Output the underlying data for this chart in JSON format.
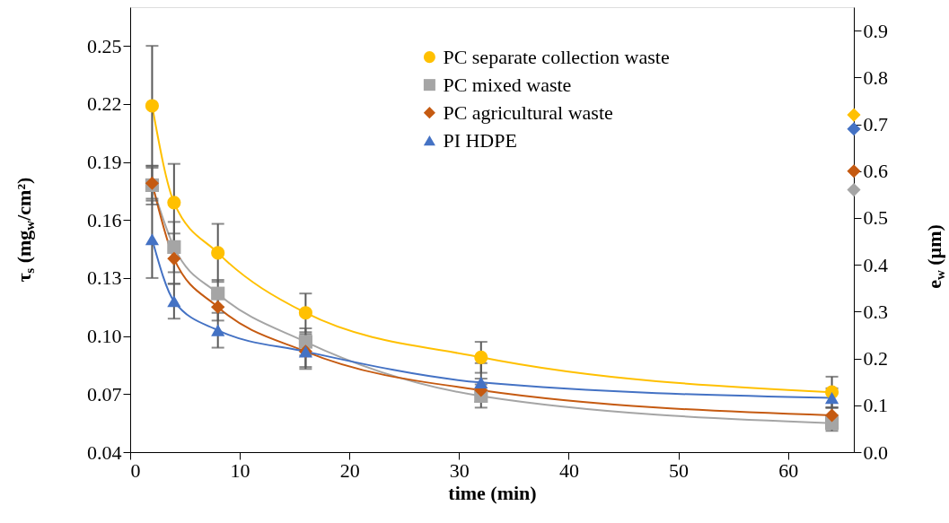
{
  "chart_data": {
    "type": "line",
    "xlabel": "time (min)",
    "ylabel": "τ$_{s}$ (mg$_{w}$/cm²)",
    "y2label": "e$_{w}$ (µm)",
    "xlim": [
      0,
      66
    ],
    "xticks": [
      0,
      10,
      20,
      30,
      40,
      50,
      60
    ],
    "ylim": [
      0.04,
      0.27
    ],
    "yticks": [
      0.04,
      0.07,
      {
        "value": 0.1,
        "label": "0.10"
      },
      0.13,
      0.16,
      0.19,
      0.22,
      0.25
    ],
    "y2lim": [
      0,
      0.95
    ],
    "y2ticks": [
      {
        "value": 0,
        "label": "0.0"
      },
      0.1,
      0.2,
      0.3,
      0.4,
      0.5,
      0.6,
      0.7,
      0.8,
      0.9
    ],
    "legend": "top right",
    "grid": false,
    "line_style": "solid",
    "series": [
      {
        "name": "PC separate collection waste",
        "color": "#ffc000",
        "marker": "circle",
        "x": [
          2,
          4,
          8,
          16,
          32,
          64
        ],
        "values": [
          0.219,
          0.169,
          0.143,
          0.112,
          0.089,
          0.071
        ],
        "errors": [
          0.031,
          0.02,
          0.015,
          0.01,
          0.008,
          0.008
        ]
      },
      {
        "name": "PC mixed waste",
        "color": "#a5a5a5",
        "marker": "square",
        "x": [
          2,
          4,
          8,
          16,
          32,
          64
        ],
        "values": [
          0.178,
          0.146,
          0.122,
          0.097,
          0.069,
          0.055
        ],
        "errors": [
          0.01,
          0.013,
          0.007,
          0.007,
          0.006,
          0.004
        ]
      },
      {
        "name": "PC agricultural waste",
        "color": "#c55a11",
        "marker": "diamond",
        "x": [
          2,
          4,
          8,
          16,
          32,
          64
        ],
        "values": [
          0.179,
          0.14,
          0.115,
          0.092,
          0.072,
          0.059
        ],
        "errors": [
          0.008,
          0.013,
          0.007,
          0.008,
          0.006,
          0.004
        ]
      },
      {
        "name": "PI HDPE",
        "color": "#4472c4",
        "marker": "triangle",
        "x": [
          2,
          4,
          8,
          16,
          32,
          64
        ],
        "values": [
          0.15,
          0.118,
          0.103,
          0.092,
          0.076,
          0.068
        ],
        "errors": [
          0.02,
          0.009,
          0.009,
          0.009,
          0.01,
          0.005
        ]
      },
      {
        "type": "scatter",
        "axis": "y2",
        "color": "#ffc000",
        "marker": "diamond",
        "x": [
          66
        ],
        "values": [
          0.72
        ]
      },
      {
        "type": "scatter",
        "axis": "y2",
        "color": "#4472c4",
        "marker": "diamond",
        "x": [
          66
        ],
        "values": [
          0.69
        ]
      },
      {
        "type": "scatter",
        "axis": "y2",
        "color": "#c55a11",
        "marker": "diamond",
        "x": [
          66
        ],
        "values": [
          0.6
        ]
      },
      {
        "type": "scatter",
        "axis": "y2",
        "color": "#a5a5a5",
        "marker": "diamond",
        "x": [
          66
        ],
        "values": [
          0.56
        ]
      }
    ]
  }
}
